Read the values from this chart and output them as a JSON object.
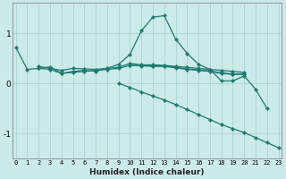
{
  "xlabel": "Humidex (Indice chaleur)",
  "bg_color": "#cceae8",
  "grid_color": "#aad4d0",
  "line_color": "#1e7a70",
  "x_values": [
    0,
    1,
    2,
    3,
    4,
    5,
    6,
    7,
    8,
    9,
    10,
    11,
    12,
    13,
    14,
    15,
    16,
    17,
    18,
    19,
    20,
    21,
    22,
    23
  ],
  "lines": [
    [
      0.72,
      0.28,
      0.3,
      0.33,
      0.2,
      0.24,
      0.26,
      0.24,
      0.3,
      0.38,
      0.58,
      1.05,
      1.32,
      1.35,
      0.88,
      0.6,
      0.38,
      0.28,
      0.05,
      0.05,
      0.15,
      -0.12,
      -0.5,
      null
    ],
    [
      null,
      null,
      0.34,
      0.3,
      0.26,
      0.3,
      0.29,
      0.28,
      0.3,
      0.32,
      0.4,
      0.37,
      0.37,
      0.36,
      0.34,
      0.32,
      0.3,
      0.28,
      0.26,
      0.24,
      0.22,
      null,
      null,
      null
    ],
    [
      null,
      null,
      0.3,
      0.28,
      0.2,
      0.22,
      0.24,
      0.26,
      0.28,
      0.3,
      0.36,
      0.36,
      0.35,
      0.35,
      0.32,
      0.29,
      0.27,
      0.25,
      0.21,
      0.19,
      0.19,
      null,
      null,
      null
    ],
    [
      null,
      null,
      null,
      null,
      null,
      null,
      null,
      null,
      null,
      null,
      0.36,
      0.35,
      0.34,
      0.34,
      0.31,
      0.28,
      0.26,
      0.24,
      0.2,
      0.18,
      0.18,
      null,
      null,
      null
    ],
    [
      null,
      null,
      null,
      null,
      null,
      null,
      null,
      null,
      null,
      0.0,
      -0.08,
      -0.17,
      -0.25,
      -0.33,
      -0.42,
      -0.52,
      -0.62,
      -0.72,
      -0.82,
      -0.9,
      -0.98,
      -1.08,
      -1.18,
      -1.28
    ]
  ],
  "ylim": [
    -1.5,
    1.6
  ],
  "xlim": [
    -0.3,
    23.3
  ],
  "yticks": [
    -1,
    0,
    1
  ],
  "ytick_labels": [
    "-1",
    "0",
    "1"
  ]
}
